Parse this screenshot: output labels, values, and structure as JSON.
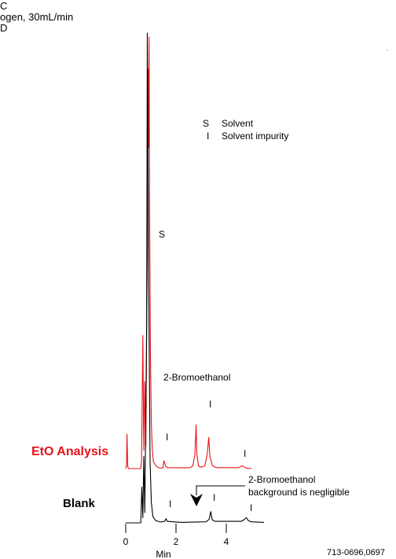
{
  "header": {
    "lines": [
      "C",
      "ogen, 30mL/min",
      "D"
    ]
  },
  "legend": {
    "items": [
      {
        "symbol": "S",
        "text": "Solvent"
      },
      {
        "symbol": "I",
        "text": "Solvent impurity"
      }
    ]
  },
  "annotations": {
    "solvent_label": "S",
    "bromo_label": "2-Bromoethanol",
    "impurity_marker": "I",
    "background_note_line1": "2-Bromoethanol",
    "background_note_line2": "background is negligible"
  },
  "traces": {
    "eto_label": "EtO Analysis",
    "blank_label": "Blank"
  },
  "colors": {
    "eto_trace": "#e8141b",
    "blank_trace": "#000000",
    "eto_label": "#e8141b"
  },
  "footer": {
    "code": "713-0696,0697"
  },
  "chart_data": {
    "type": "line",
    "xlabel": "Min",
    "x_ticks": [
      0,
      2,
      4
    ],
    "xlim": [
      0,
      5.6
    ],
    "series": [
      {
        "name": "EtO Analysis",
        "color": "#e8141b",
        "points": [
          [
            0,
            0
          ],
          [
            0.03,
            0.5
          ],
          [
            0.05,
            7.5
          ],
          [
            0.08,
            0.4
          ],
          [
            0.12,
            0
          ],
          [
            0.6,
            0
          ],
          [
            0.63,
            2
          ],
          [
            0.68,
            29
          ],
          [
            0.72,
            4
          ],
          [
            0.76,
            19
          ],
          [
            0.8,
            5
          ],
          [
            0.84,
            33
          ],
          [
            0.87,
            48
          ],
          [
            0.89,
            87
          ],
          [
            0.91,
            70
          ],
          [
            0.93,
            94
          ],
          [
            0.95,
            58
          ],
          [
            0.98,
            26
          ],
          [
            1.02,
            10
          ],
          [
            1.06,
            4
          ],
          [
            1.1,
            1.5
          ],
          [
            1.2,
            0.6
          ],
          [
            1.3,
            0.2
          ],
          [
            1.4,
            0.1
          ],
          [
            1.48,
            0.2
          ],
          [
            1.52,
            1.7
          ],
          [
            1.58,
            0.6
          ],
          [
            1.66,
            0.2
          ],
          [
            2.3,
            0.15
          ],
          [
            2.55,
            0.2
          ],
          [
            2.67,
            0.6
          ],
          [
            2.75,
            3
          ],
          [
            2.8,
            9.5
          ],
          [
            2.83,
            3
          ],
          [
            2.9,
            0.5
          ],
          [
            3,
            0.3
          ],
          [
            3.15,
            0.6
          ],
          [
            3.25,
            3.5
          ],
          [
            3.3,
            6.8
          ],
          [
            3.35,
            2.6
          ],
          [
            3.45,
            0.6
          ],
          [
            3.6,
            0.2
          ],
          [
            4.5,
            0.2
          ],
          [
            4.62,
            0.6
          ],
          [
            4.7,
            0.4
          ],
          [
            4.8,
            0.1
          ],
          [
            5,
            0
          ]
        ]
      },
      {
        "name": "Blank",
        "color": "#000000",
        "points": [
          [
            0,
            0
          ],
          [
            0.6,
            0
          ],
          [
            0.64,
            7
          ],
          [
            0.68,
            1
          ],
          [
            0.72,
            13
          ],
          [
            0.76,
            2
          ],
          [
            0.8,
            22
          ],
          [
            0.83,
            38
          ],
          [
            0.86,
            96
          ],
          [
            0.89,
            70
          ],
          [
            0.91,
            52
          ],
          [
            0.94,
            30
          ],
          [
            0.97,
            12
          ],
          [
            1.02,
            4
          ],
          [
            1.08,
            1.2
          ],
          [
            1.2,
            0.4
          ],
          [
            1.4,
            0.15
          ],
          [
            1.55,
            0.3
          ],
          [
            1.6,
            0.8
          ],
          [
            1.66,
            0.3
          ],
          [
            1.9,
            0.2
          ],
          [
            2.2,
            0.1
          ],
          [
            3.2,
            0.2
          ],
          [
            3.32,
            0.7
          ],
          [
            3.38,
            2.2
          ],
          [
            3.44,
            0.6
          ],
          [
            3.55,
            0.3
          ],
          [
            4.6,
            0.3
          ],
          [
            4.7,
            0.6
          ],
          [
            4.8,
            1
          ],
          [
            4.88,
            0.4
          ],
          [
            5,
            0.2
          ],
          [
            5.5,
            0.1
          ]
        ]
      }
    ]
  }
}
